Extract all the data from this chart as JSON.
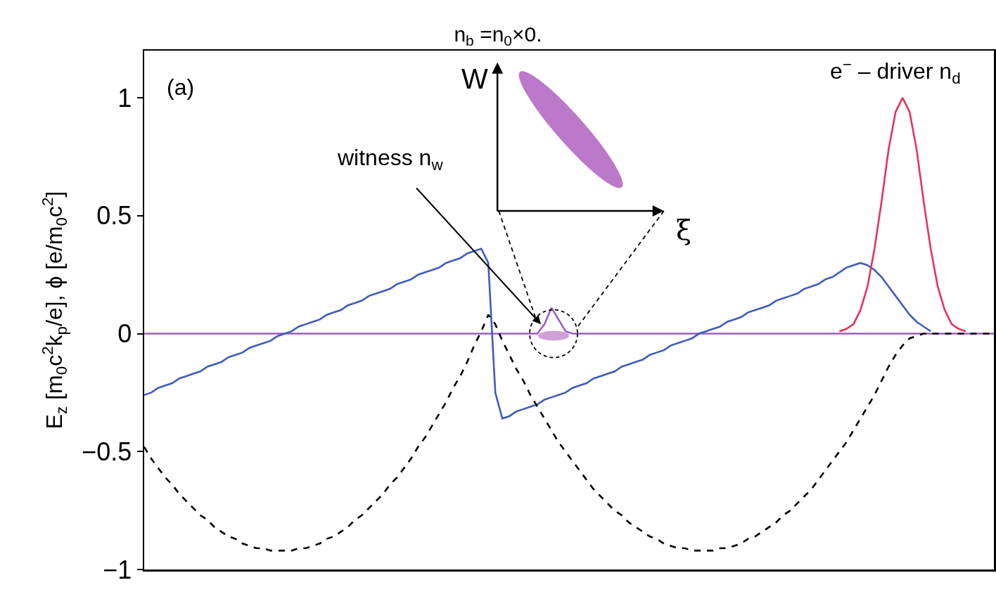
{
  "chart_data": {
    "type": "line",
    "title": "n$_{b}$ =n$_{0}$×0.",
    "ylabel": "E$_{z}$ [m$_{0}$c$^{2}$k$_{p}$/e], ϕ [e/m$_{0}$c$^{2}$]",
    "annotations": [
      "(a)",
      "witness n$_{w}$",
      "e$^{−}$ – driver n$_{d}$",
      "W",
      "ξ"
    ],
    "categories": [
      null,
      null,
      null,
      null,
      null,
      null,
      null,
      null,
      null,
      null,
      null,
      null,
      null,
      null,
      null,
      null,
      null,
      null,
      null,
      null,
      null,
      null,
      null,
      null,
      null,
      null,
      null,
      null,
      null,
      null,
      null,
      null,
      null,
      null,
      null,
      null,
      null,
      null,
      null,
      null,
      null,
      null,
      null,
      null,
      null,
      null,
      null,
      null,
      null,
      null,
      null,
      null,
      null,
      null,
      null,
      null,
      null,
      null,
      null,
      null,
      null,
      null,
      null,
      null,
      null,
      null,
      null,
      null,
      null,
      null,
      null,
      null,
      null,
      null,
      null,
      null,
      null,
      null,
      null,
      null,
      null,
      null,
      null,
      null,
      null,
      null,
      null,
      null,
      null,
      null,
      null,
      null,
      null,
      null,
      null,
      null,
      null,
      null,
      null,
      null,
      null,
      null,
      null,
      null,
      null,
      null,
      null,
      null,
      null,
      null,
      null,
      null,
      null,
      null,
      null,
      null,
      null,
      null,
      null,
      null,
      null,
      null
    ],
    "series": [
      {
        "type": "line",
        "color": "#9a5fc0",
        "line_style": "solid",
        "values": [
          0,
          0,
          0,
          0,
          0,
          0,
          0,
          0,
          0,
          0,
          0,
          0,
          0,
          0,
          0,
          0,
          0,
          0,
          0,
          0,
          0,
          0,
          0,
          0,
          0,
          0,
          0,
          0,
          0,
          0,
          0,
          0,
          0,
          0,
          0,
          0,
          0,
          0,
          0,
          0,
          0,
          0,
          0,
          0,
          0,
          0,
          0,
          0,
          0,
          0,
          0,
          0,
          0,
          0,
          0,
          0,
          0,
          0.04,
          0.11,
          0.06,
          0.01,
          0,
          0,
          0,
          0,
          0,
          0,
          0,
          0,
          0,
          0,
          0,
          0,
          0,
          0,
          0,
          0,
          0,
          0,
          0,
          0,
          0,
          0,
          0,
          0,
          0,
          0,
          0,
          0,
          0,
          0,
          0,
          0,
          0,
          0,
          0,
          0,
          0,
          0,
          0,
          0,
          0,
          0,
          0,
          0,
          0,
          0,
          0,
          0,
          0,
          0,
          0,
          0,
          0,
          0,
          0,
          0,
          0,
          0,
          0,
          0,
          0
        ]
      },
      {
        "type": "line",
        "color": "#3f5cb8",
        "line_style": "solid",
        "values": [
          -0.26,
          -0.25,
          -0.23,
          -0.22,
          -0.21,
          -0.19,
          -0.18,
          -0.17,
          -0.16,
          -0.14,
          -0.13,
          -0.12,
          -0.1,
          -0.09,
          -0.08,
          -0.06,
          -0.05,
          -0.04,
          -0.03,
          -0.01,
          0.0,
          0.01,
          0.03,
          0.04,
          0.05,
          0.06,
          0.08,
          0.09,
          0.1,
          0.12,
          0.13,
          0.14,
          0.16,
          0.17,
          0.18,
          0.19,
          0.21,
          0.22,
          0.23,
          0.25,
          0.26,
          0.27,
          0.28,
          0.3,
          0.31,
          0.32,
          0.34,
          0.35,
          0.36,
          0.3,
          -0.25,
          -0.36,
          -0.35,
          -0.33,
          -0.32,
          -0.31,
          -0.3,
          -0.28,
          -0.27,
          -0.26,
          -0.25,
          -0.23,
          -0.22,
          -0.21,
          -0.19,
          -0.18,
          -0.17,
          -0.16,
          -0.14,
          -0.13,
          -0.12,
          -0.11,
          -0.09,
          -0.08,
          -0.07,
          -0.05,
          -0.04,
          -0.03,
          -0.02,
          0.0,
          0.01,
          0.02,
          0.03,
          0.05,
          0.06,
          0.07,
          0.09,
          0.1,
          0.11,
          0.12,
          0.14,
          0.15,
          0.16,
          0.17,
          0.19,
          0.2,
          0.21,
          0.23,
          0.24,
          0.26,
          0.28,
          0.29,
          0.3,
          0.29,
          0.27,
          0.24,
          0.2,
          0.16,
          0.12,
          0.08,
          0.05,
          0.03,
          0.01,
          null,
          null,
          null,
          null,
          null,
          null,
          null,
          null,
          null
        ]
      },
      {
        "type": "line",
        "color": "#e8325a",
        "line_style": "solid",
        "values": [
          null,
          null,
          null,
          null,
          null,
          null,
          null,
          null,
          null,
          null,
          null,
          null,
          null,
          null,
          null,
          null,
          null,
          null,
          null,
          null,
          null,
          null,
          null,
          null,
          null,
          null,
          null,
          null,
          null,
          null,
          null,
          null,
          null,
          null,
          null,
          null,
          null,
          null,
          null,
          null,
          null,
          null,
          null,
          null,
          null,
          null,
          null,
          null,
          null,
          null,
          null,
          null,
          null,
          null,
          null,
          null,
          null,
          null,
          null,
          null,
          null,
          null,
          null,
          null,
          null,
          null,
          null,
          null,
          null,
          null,
          null,
          null,
          null,
          null,
          null,
          null,
          null,
          null,
          null,
          null,
          null,
          null,
          null,
          null,
          null,
          null,
          null,
          null,
          null,
          null,
          null,
          null,
          null,
          null,
          null,
          null,
          null,
          null,
          null,
          0.01,
          0.02,
          0.04,
          0.1,
          0.2,
          0.36,
          0.56,
          0.78,
          0.94,
          1.0,
          0.94,
          0.78,
          0.56,
          0.36,
          0.2,
          0.1,
          0.04,
          0.02,
          0.01,
          null,
          null,
          null,
          null
        ]
      },
      {
        "type": "line",
        "color": "#000000",
        "line_style": "dashed",
        "values": [
          -0.48,
          -0.53,
          -0.57,
          -0.61,
          -0.64,
          -0.68,
          -0.71,
          -0.74,
          -0.77,
          -0.79,
          -0.82,
          -0.84,
          -0.86,
          -0.87,
          -0.89,
          -0.9,
          -0.91,
          -0.91,
          -0.92,
          -0.92,
          -0.92,
          -0.92,
          -0.91,
          -0.91,
          -0.9,
          -0.89,
          -0.87,
          -0.86,
          -0.84,
          -0.82,
          -0.79,
          -0.77,
          -0.74,
          -0.71,
          -0.68,
          -0.64,
          -0.61,
          -0.57,
          -0.53,
          -0.48,
          -0.44,
          -0.39,
          -0.34,
          -0.29,
          -0.23,
          -0.18,
          -0.12,
          -0.05,
          0.01,
          0.08,
          0.04,
          -0.03,
          -0.09,
          -0.15,
          -0.2,
          -0.26,
          -0.31,
          -0.36,
          -0.41,
          -0.46,
          -0.5,
          -0.54,
          -0.58,
          -0.62,
          -0.66,
          -0.69,
          -0.72,
          -0.75,
          -0.77,
          -0.8,
          -0.82,
          -0.84,
          -0.86,
          -0.87,
          -0.89,
          -0.9,
          -0.91,
          -0.91,
          -0.92,
          -0.92,
          -0.92,
          -0.92,
          -0.91,
          -0.91,
          -0.9,
          -0.89,
          -0.87,
          -0.86,
          -0.84,
          -0.82,
          -0.8,
          -0.77,
          -0.75,
          -0.72,
          -0.69,
          -0.66,
          -0.62,
          -0.58,
          -0.54,
          -0.5,
          -0.46,
          -0.41,
          -0.36,
          -0.31,
          -0.26,
          -0.2,
          -0.14,
          -0.09,
          -0.05,
          -0.02,
          -0.01,
          0,
          0,
          0,
          0,
          0,
          0,
          0,
          0,
          0,
          0,
          0
        ]
      }
    ],
    "ylim": [
      -1,
      1.2
    ],
    "yticks": [
      1,
      0.5,
      0,
      {
        "value": -0.5,
        "label": "−0.5"
      },
      {
        "value": -1,
        "label": "−1"
      }
    ],
    "tick_labels": "y"
  }
}
